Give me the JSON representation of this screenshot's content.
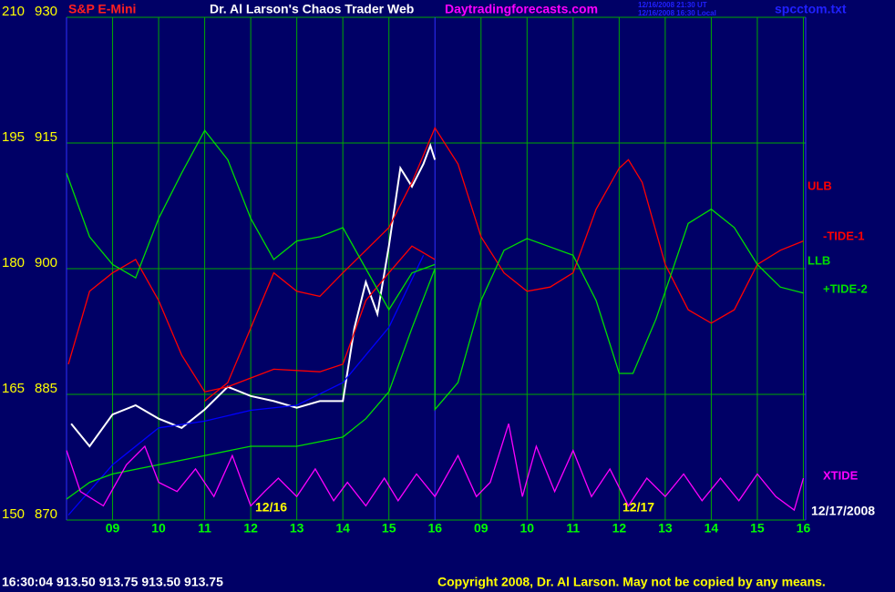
{
  "chart_data": {
    "type": "line",
    "instrument": "S&P E-Mini",
    "title": "Dr. Al Larson's Chaos Trader Web",
    "site": "Daytradingforecasts.com",
    "timestamps": [
      "12/16/2008 21:30 UT",
      "12/16/2008 16:30 Local"
    ],
    "file": "spcctom.txt",
    "quote": "16:30:04  913.50 913.75 913.50 913.75",
    "copyright": "Copyright 2008, Dr. Al Larson. May not be copied by any means.",
    "annotations": [
      "12/16",
      "12/17",
      "12/17/2008"
    ],
    "xlim": [
      0,
      16.05
    ],
    "xticks": [
      {
        "value": 1,
        "label": "09"
      },
      {
        "value": 2,
        "label": "10"
      },
      {
        "value": 3,
        "label": "11"
      },
      {
        "value": 4,
        "label": "12"
      },
      {
        "value": 5,
        "label": "13"
      },
      {
        "value": 6,
        "label": "14"
      },
      {
        "value": 7,
        "label": "15"
      },
      {
        "value": 8,
        "label": "16"
      },
      {
        "value": 9,
        "label": "09"
      },
      {
        "value": 10,
        "label": "10"
      },
      {
        "value": 11,
        "label": "11"
      },
      {
        "value": 12,
        "label": "12"
      },
      {
        "value": 13,
        "label": "13"
      },
      {
        "value": 14,
        "label": "14"
      },
      {
        "value": 15,
        "label": "15"
      },
      {
        "value": 16,
        "label": "16"
      }
    ],
    "ylim": [
      870,
      930
    ],
    "yticks": [
      870,
      885,
      900,
      915,
      930
    ],
    "y2lim": [
      150,
      210
    ],
    "y2ticks": [
      150,
      165,
      180,
      195,
      210
    ],
    "grid": true,
    "series": [
      {
        "color": "#ffffff",
        "x": [
          0.1,
          0.5,
          1,
          1.5,
          2,
          2.5,
          3,
          3.5,
          4,
          4.5,
          5,
          5.5,
          6,
          6.25,
          6.5,
          6.75,
          7,
          7.25,
          7.5,
          7.75,
          7.9,
          8.0
        ],
        "values": [
          881.5,
          878.8,
          882.6,
          883.7,
          882.1,
          881.0,
          883.2,
          885.9,
          884.8,
          884.2,
          883.4,
          884.2,
          884.2,
          892.9,
          898.4,
          894.6,
          902.7,
          912.0,
          909.8,
          912.5,
          914.7,
          913.0
        ]
      },
      {
        "color": "#0000ff",
        "x": [
          0.04,
          1,
          2,
          3,
          4,
          5,
          6,
          7,
          7.75
        ],
        "values": [
          870.6,
          876.6,
          881.0,
          881.8,
          883.1,
          883.7,
          886.4,
          893.0,
          901.6
        ]
      },
      {
        "name": "ULB",
        "color": "#ff0000",
        "axis": "y2",
        "x": [
          0.04,
          0.5,
          1,
          1.5,
          2,
          2.5,
          3,
          3.5,
          4.5,
          5.5,
          6,
          6.5,
          7,
          7.5,
          8
        ],
        "values": [
          168.6,
          177.3,
          179.5,
          181.1,
          176.2,
          169.7,
          165.3,
          165.9,
          168.0,
          167.7,
          168.6,
          176.2,
          179.5,
          182.7,
          181.1
        ]
      },
      {
        "name": "-TIDE-1",
        "color": "#ff0000",
        "axis": "y2",
        "x": [
          3,
          3.5,
          4,
          4.5,
          5,
          5.5,
          6,
          7,
          7.5,
          8,
          8.5,
          9,
          9.5,
          10,
          10.5,
          11,
          11.5,
          12,
          12.2,
          12.5,
          13,
          13.5,
          14,
          14.5,
          15,
          15.5,
          16
        ],
        "values": [
          164.2,
          166.4,
          172.9,
          179.5,
          177.3,
          176.7,
          179.5,
          184.9,
          190.3,
          196.8,
          192.5,
          183.8,
          179.5,
          177.3,
          177.8,
          179.5,
          187.1,
          192.0,
          193.0,
          190.3,
          180.5,
          175.1,
          173.5,
          175.1,
          180.5,
          182.2,
          183.3
        ]
      },
      {
        "name": "LLB",
        "color": "#00dd00",
        "axis": "y2",
        "x": [
          0,
          0.5,
          1,
          2,
          3,
          4,
          5,
          6,
          6.5,
          7,
          7.5,
          8,
          8,
          8.5,
          9,
          9.5,
          10,
          11,
          11.5,
          12,
          12.3,
          12.8,
          13.5,
          14,
          14.5,
          15,
          15.5,
          16
        ],
        "values": [
          152.5,
          154.5,
          155.5,
          156.6,
          157.7,
          158.8,
          158.8,
          159.9,
          162.1,
          165.3,
          172.9,
          180.0,
          163.2,
          166.4,
          176.2,
          182.2,
          183.6,
          181.6,
          176.2,
          167.5,
          167.5,
          174.0,
          185.4,
          187.1,
          184.9,
          180.5,
          177.8,
          177.1
        ]
      },
      {
        "name": "+TIDE-2",
        "color": "#00dd00",
        "axis": "y2",
        "x": [
          0,
          0.5,
          1,
          1.5,
          2,
          2.5,
          3,
          3.5,
          4,
          4.5,
          5,
          5.5,
          6,
          6.5,
          7,
          7.5,
          8
        ],
        "values": [
          191.4,
          183.8,
          180.5,
          178.9,
          186.0,
          191.4,
          196.5,
          193.0,
          186.0,
          181.1,
          183.3,
          183.8,
          184.9,
          180.0,
          175.1,
          179.5,
          180.5
        ]
      },
      {
        "name": "XTIDE",
        "color": "#ff00ff",
        "axis": "y2",
        "x": [
          0,
          0.3,
          0.8,
          1.3,
          1.7,
          2.0,
          2.4,
          2.8,
          3.2,
          3.6,
          4.0,
          4.3,
          4.6,
          5.0,
          5.4,
          5.8,
          6.1,
          6.5,
          6.9,
          7.2,
          7.6,
          8.0,
          8.5,
          8.9,
          9.2,
          9.6,
          9.9,
          10.2,
          10.6,
          11.0,
          11.4,
          11.8,
          12.2,
          12.6,
          13.0,
          13.4,
          13.8,
          14.2,
          14.6,
          15.0,
          15.4,
          15.8,
          16.0
        ],
        "values": [
          158.3,
          153.4,
          151.7,
          156.6,
          158.8,
          154.5,
          153.4,
          156.1,
          152.8,
          157.7,
          151.7,
          153.4,
          155.0,
          152.8,
          156.1,
          152.3,
          154.5,
          151.7,
          155.0,
          152.3,
          155.5,
          152.8,
          157.7,
          152.8,
          154.5,
          161.5,
          152.8,
          158.8,
          153.4,
          158.3,
          152.8,
          156.1,
          151.7,
          155.0,
          152.8,
          155.5,
          152.3,
          155.0,
          152.3,
          155.5,
          152.8,
          151.2,
          155.0
        ]
      }
    ]
  }
}
